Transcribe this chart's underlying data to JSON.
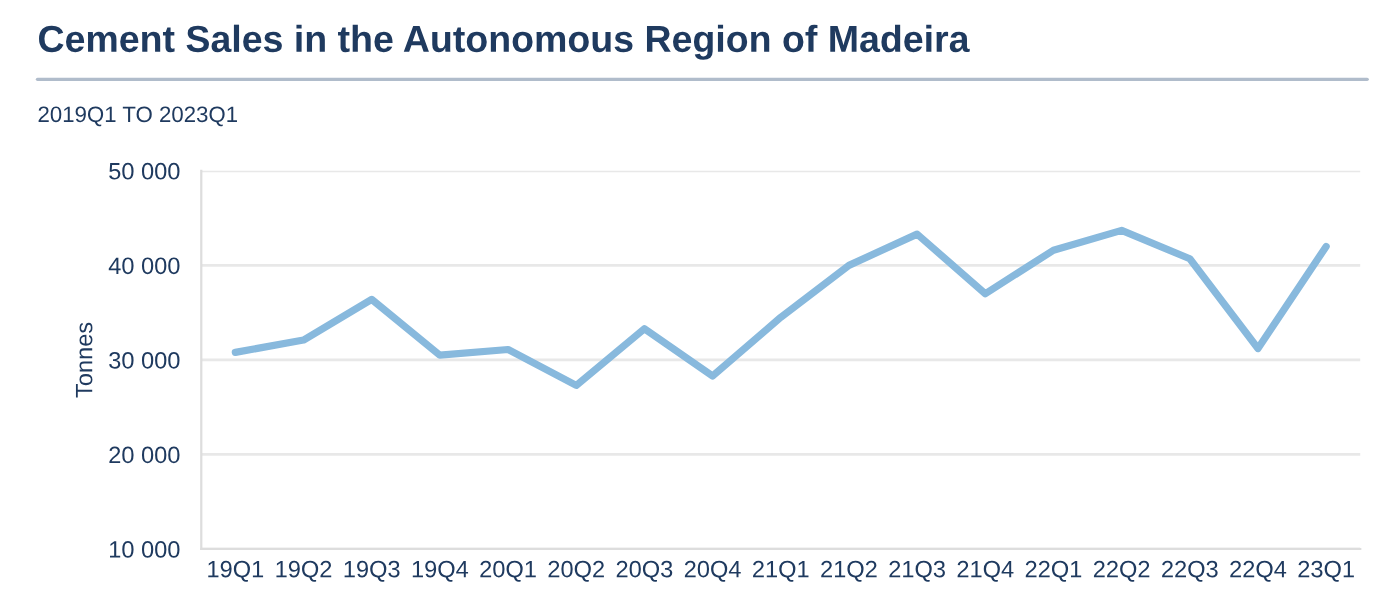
{
  "chart_data": {
    "type": "line",
    "title": "Cement Sales in the Autonomous Region of Madeira",
    "subtitle": "2019Q1 TO 2023Q1",
    "ylabel": "Tonnes",
    "categories": [
      "19Q1",
      "19Q2",
      "19Q3",
      "19Q4",
      "20Q1",
      "20Q2",
      "20Q3",
      "20Q4",
      "21Q1",
      "21Q2",
      "21Q3",
      "21Q4",
      "22Q1",
      "22Q2",
      "22Q3",
      "22Q4",
      "23Q1"
    ],
    "series": [
      {
        "color": "#88b9dd",
        "values": [
          30800,
          32100,
          36400,
          30500,
          31100,
          27300,
          33300,
          28300,
          34500,
          40000,
          43300,
          37000,
          41600,
          43700,
          40700,
          31200,
          42000
        ]
      }
    ],
    "ylim": [
      10000,
      50000
    ],
    "yticks": [
      {
        "value": 10000,
        "label": "10 000"
      },
      {
        "value": 20000,
        "label": "20 000"
      },
      {
        "value": 30000,
        "label": "30 000"
      },
      {
        "value": 40000,
        "label": "40 000"
      },
      {
        "value": 50000,
        "label": "50 000"
      }
    ],
    "grid": "y",
    "marker": "none",
    "line_style": "solid",
    "legend": false
  }
}
